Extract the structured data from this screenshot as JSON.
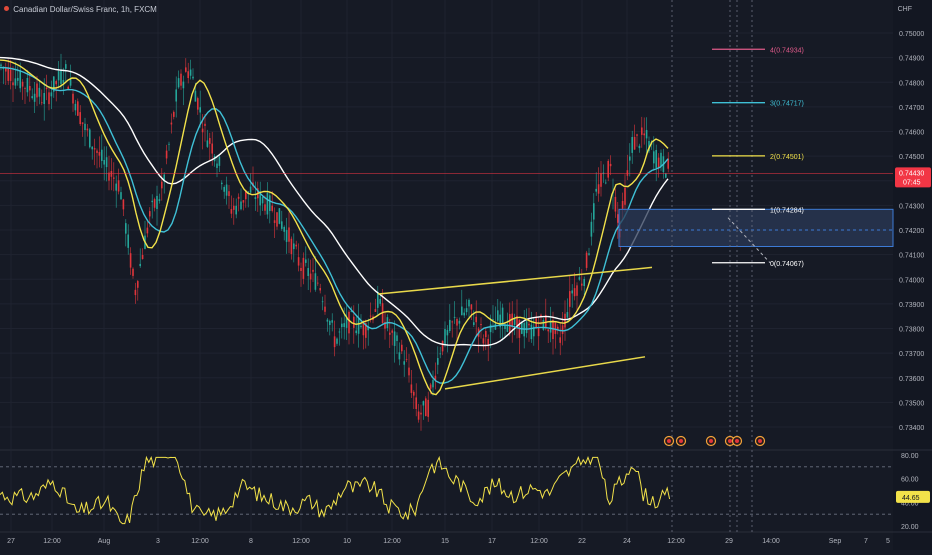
{
  "header": {
    "symbol_text": "Canadian Dollar/Swiss Franc, 1h, FXCM",
    "currency": "CHF"
  },
  "colors": {
    "background": "#161a25",
    "grid": "#1f2330",
    "up": "#24a69a",
    "down": "#e0353b",
    "ema_white": "#ffffff",
    "ema_yellow": "#f2e24a",
    "ema_cyan": "#3fc0d6",
    "channel": "#e8d84a",
    "zone_fill": "#2b3a57",
    "zone_border": "#3d7bd6",
    "price_badge": "#f23645",
    "rsi": "#f2e24a"
  },
  "price_axis": {
    "ticks": [
      "0.75000",
      "0.74900",
      "0.74800",
      "0.74700",
      "0.74600",
      "0.74500",
      "0.74400",
      "0.74300",
      "0.74200",
      "0.74100",
      "0.74000",
      "0.73900",
      "0.73800",
      "0.73700",
      "0.73600",
      "0.73500",
      "0.73400"
    ]
  },
  "current_price": {
    "value": "0.74430",
    "countdown": "07:45"
  },
  "rsi_axis": {
    "ticks": [
      "80.00",
      "60.00",
      "40.00",
      "20.00"
    ],
    "current": "44.65"
  },
  "time_axis": {
    "labels": [
      "27",
      "12:00",
      "Aug",
      "3",
      "12:00",
      "8",
      "12:00",
      "10",
      "12:00",
      "15",
      "17",
      "12:00",
      "22",
      "24",
      "12:00",
      "29",
      "14:00",
      "Sep",
      "5",
      "7"
    ]
  },
  "fib_levels": [
    {
      "label": "4(0.74934)",
      "price": 0.74934,
      "color": "#e05a8a"
    },
    {
      "label": "3(0.74717)",
      "price": 0.74717,
      "color": "#3fc0d6"
    },
    {
      "label": "2(0.74501)",
      "price": 0.74501,
      "color": "#f2e24a"
    },
    {
      "label": "1(0.74284)",
      "price": 0.74284,
      "color": "#ffffff"
    },
    {
      "label": "0(0.74067)",
      "price": 0.74067,
      "color": "#ffffff"
    }
  ]
}
